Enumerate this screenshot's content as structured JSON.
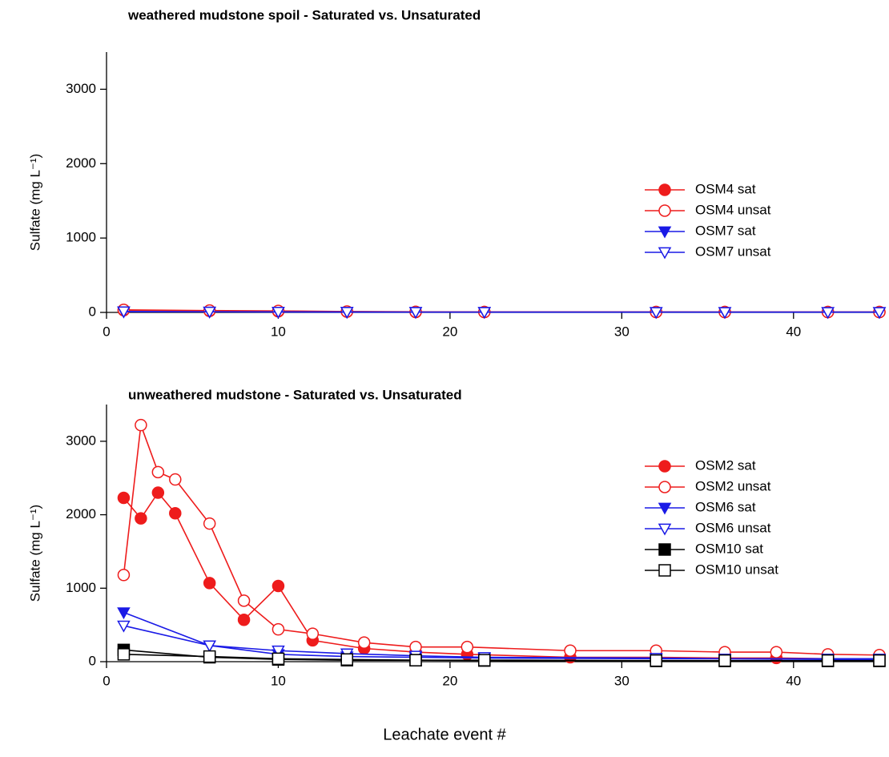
{
  "chart_data": [
    {
      "type": "line",
      "title": "weathered mudstone spoil  -  Saturated vs. Unsaturated",
      "ylabel": "Sulfate (mg L⁻¹)",
      "xlim": [
        0,
        45
      ],
      "ylim": [
        0,
        3500
      ],
      "xticks": [
        0,
        10,
        20,
        30,
        40
      ],
      "yticks": [
        0,
        1000,
        2000,
        3000
      ],
      "legend": "right",
      "series": [
        {
          "name": "OSM4 sat",
          "color": "#ee1c1c",
          "marker": "circle",
          "filled": true,
          "x": [
            1,
            6,
            10,
            14,
            18,
            22,
            32,
            36,
            42,
            45
          ],
          "values": [
            30,
            20,
            15,
            10,
            5,
            5,
            5,
            5,
            5,
            5
          ]
        },
        {
          "name": "OSM4 unsat",
          "color": "#ee1c1c",
          "marker": "circle",
          "filled": false,
          "x": [
            1,
            6,
            10,
            14,
            18,
            22,
            32,
            36,
            42,
            45
          ],
          "values": [
            35,
            25,
            20,
            12,
            8,
            6,
            6,
            5,
            5,
            5
          ]
        },
        {
          "name": "OSM7 sat",
          "color": "#1a1ae6",
          "marker": "triangle-down",
          "filled": true,
          "x": [
            1,
            6,
            10,
            14,
            18,
            22,
            32,
            36,
            42,
            45
          ],
          "values": [
            10,
            8,
            6,
            5,
            4,
            4,
            3,
            3,
            3,
            3
          ]
        },
        {
          "name": "OSM7 unsat",
          "color": "#1a1ae6",
          "marker": "triangle-down",
          "filled": false,
          "x": [
            1,
            6,
            10,
            14,
            18,
            22,
            32,
            36,
            42,
            45
          ],
          "values": [
            12,
            9,
            7,
            5,
            4,
            4,
            3,
            3,
            3,
            3
          ]
        }
      ]
    },
    {
      "type": "line",
      "title": "unweathered mudstone  -  Saturated vs. Unsaturated",
      "ylabel": "Sulfate (mg L⁻¹)",
      "xlabel": "Leachate event #",
      "xlim": [
        0,
        45
      ],
      "ylim": [
        0,
        3500
      ],
      "xticks": [
        0,
        10,
        20,
        30,
        40
      ],
      "yticks": [
        0,
        1000,
        2000,
        3000
      ],
      "legend": "right",
      "series": [
        {
          "name": "OSM2 sat",
          "color": "#ee1c1c",
          "marker": "circle",
          "filled": true,
          "x": [
            1,
            2,
            3,
            4,
            6,
            8,
            10,
            12,
            15,
            18,
            21,
            27,
            32,
            36,
            39,
            42,
            45
          ],
          "values": [
            2230,
            1950,
            2300,
            2020,
            1070,
            570,
            1030,
            290,
            180,
            130,
            100,
            60,
            60,
            50,
            50,
            40,
            40
          ]
        },
        {
          "name": "OSM2 unsat",
          "color": "#ee1c1c",
          "marker": "circle",
          "filled": false,
          "x": [
            1,
            2,
            3,
            4,
            6,
            8,
            10,
            12,
            15,
            18,
            21,
            27,
            32,
            36,
            39,
            42,
            45
          ],
          "values": [
            1180,
            3220,
            2580,
            2480,
            1880,
            830,
            440,
            380,
            260,
            200,
            200,
            150,
            150,
            130,
            130,
            100,
            90
          ]
        },
        {
          "name": "OSM6 sat",
          "color": "#1a1ae6",
          "marker": "triangle-down",
          "filled": true,
          "x": [
            1,
            6,
            10,
            14,
            18,
            22,
            32,
            36,
            42,
            45
          ],
          "values": [
            670,
            220,
            100,
            70,
            60,
            50,
            40,
            40,
            30,
            30
          ]
        },
        {
          "name": "OSM6 unsat",
          "color": "#1a1ae6",
          "marker": "triangle-down",
          "filled": false,
          "x": [
            1,
            6,
            10,
            14,
            18,
            22,
            32,
            36,
            42,
            45
          ],
          "values": [
            490,
            220,
            150,
            110,
            80,
            60,
            50,
            40,
            40,
            40
          ]
        },
        {
          "name": "OSM10 sat",
          "color": "#000000",
          "marker": "square",
          "filled": true,
          "x": [
            1,
            6,
            10,
            14,
            18,
            22,
            32,
            36,
            42,
            45
          ],
          "values": [
            160,
            60,
            30,
            20,
            20,
            15,
            10,
            10,
            10,
            10
          ]
        },
        {
          "name": "OSM10 unsat",
          "color": "#000000",
          "marker": "square",
          "filled": false,
          "x": [
            1,
            6,
            10,
            14,
            18,
            22,
            32,
            36,
            42,
            45
          ],
          "values": [
            100,
            70,
            40,
            30,
            20,
            20,
            15,
            15,
            15,
            15
          ]
        }
      ]
    }
  ]
}
